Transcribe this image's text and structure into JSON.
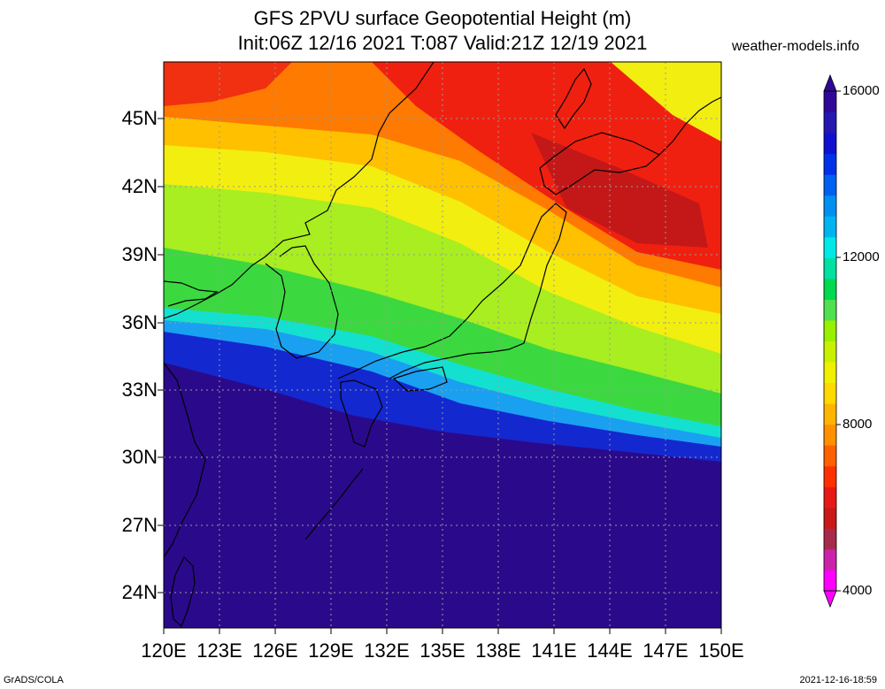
{
  "title_line1": "GFS 2PVU surface Geopotential Height (m)",
  "title_line2": "Init:06Z 12/16 2021 T:087 Valid:21Z 12/19 2021",
  "brand": "weather-models.info",
  "footer_left": "GrADS/COLA",
  "footer_right": "2021-12-16-18:59",
  "lat_labels": [
    "45N",
    "42N",
    "39N",
    "36N",
    "33N",
    "30N",
    "27N",
    "24N"
  ],
  "lon_labels": [
    "120E",
    "123E",
    "126E",
    "129E",
    "132E",
    "135E",
    "138E",
    "141E",
    "144E",
    "147E",
    "150E"
  ],
  "colorbar": {
    "labels": [
      "16000",
      "12000",
      "8000",
      "4000"
    ],
    "colors": [
      "#ff00ff",
      "#cc22aa",
      "#a82a4a",
      "#c81818",
      "#e81818",
      "#ff3000",
      "#ff6000",
      "#ff9000",
      "#ffb400",
      "#ffd800",
      "#f0f000",
      "#c8f000",
      "#96f000",
      "#50e050",
      "#00d850",
      "#00e0a0",
      "#00e8e8",
      "#00b4f0",
      "#0090f0",
      "#0060f0",
      "#0030e8",
      "#1010d0",
      "#2418b0",
      "#300898"
    ]
  }
}
